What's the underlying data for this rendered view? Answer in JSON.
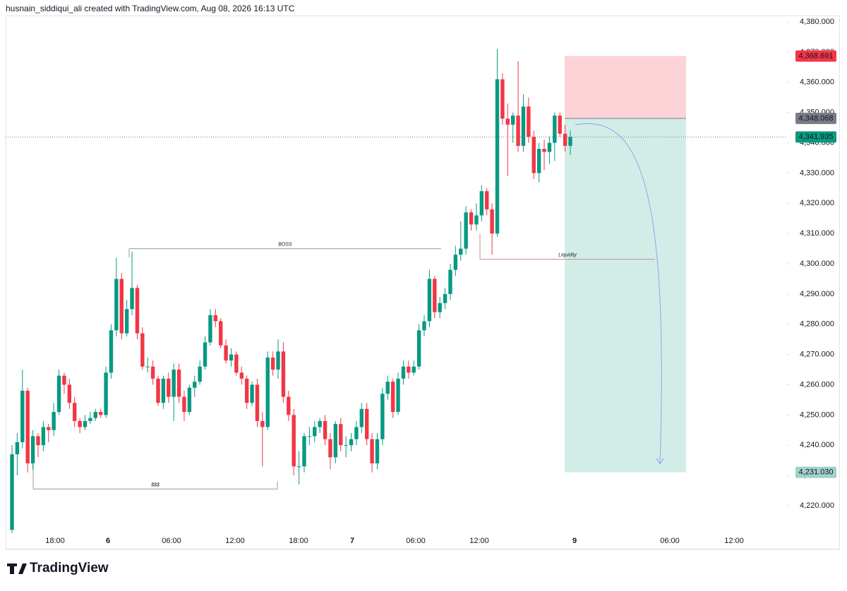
{
  "header": "husnain_siddiqui_ali created with TradingView.com, Aug 08, 2026 16:13 UTC",
  "footer": "TradingView",
  "chart_data": {
    "type": "candlestick",
    "up_color": "#089981",
    "down_color": "#f23645",
    "ohlc": [
      [
        4212,
        4240,
        4211,
        4237
      ],
      [
        4237,
        4244,
        4230,
        4241
      ],
      [
        4241,
        4265,
        4239,
        4258
      ],
      [
        4258,
        4259,
        4231,
        4234
      ],
      [
        4234,
        4245,
        4232,
        4243
      ],
      [
        4243,
        4244,
        4236,
        4240
      ],
      [
        4240,
        4248,
        4238,
        4246
      ],
      [
        4246,
        4247,
        4241,
        4245
      ],
      [
        4245,
        4254,
        4243,
        4251
      ],
      [
        4251,
        4265,
        4250,
        4263
      ],
      [
        4263,
        4264,
        4257,
        4260
      ],
      [
        4260,
        4262,
        4252,
        4254
      ],
      [
        4254,
        4256,
        4246,
        4248
      ],
      [
        4248,
        4249,
        4244,
        4246
      ],
      [
        4246,
        4250,
        4245,
        4248
      ],
      [
        4248,
        4251,
        4247,
        4249
      ],
      [
        4249,
        4252,
        4248,
        4251
      ],
      [
        4251,
        4252,
        4249,
        4250
      ],
      [
        4250,
        4266,
        4249,
        4264
      ],
      [
        4264,
        4280,
        4262,
        4278
      ],
      [
        4278,
        4302,
        4276,
        4295
      ],
      [
        4295,
        4297,
        4275,
        4277
      ],
      [
        4277,
        4288,
        4276,
        4285
      ],
      [
        4285,
        4304,
        4283,
        4292
      ],
      [
        4292,
        4293,
        4275,
        4277
      ],
      [
        4277,
        4279,
        4265,
        4266
      ],
      [
        4266,
        4269,
        4264,
        4266
      ],
      [
        4266,
        4268,
        4260,
        4262
      ],
      [
        4262,
        4263,
        4253,
        4254
      ],
      [
        4254,
        4263,
        4252,
        4262
      ],
      [
        4262,
        4264,
        4254,
        4256
      ],
      [
        4256,
        4267,
        4248,
        4265
      ],
      [
        4265,
        4267,
        4254,
        4256
      ],
      [
        4256,
        4258,
        4248,
        4251
      ],
      [
        4251,
        4260,
        4250,
        4259
      ],
      [
        4259,
        4263,
        4256,
        4261
      ],
      [
        4261,
        4268,
        4260,
        4266
      ],
      [
        4266,
        4276,
        4265,
        4274
      ],
      [
        4274,
        4285,
        4273,
        4283
      ],
      [
        4283,
        4285,
        4279,
        4281
      ],
      [
        4281,
        4282,
        4272,
        4273
      ],
      [
        4273,
        4275,
        4267,
        4268
      ],
      [
        4268,
        4272,
        4266,
        4270
      ],
      [
        4270,
        4271,
        4263,
        4264
      ],
      [
        4264,
        4266,
        4260,
        4262
      ],
      [
        4262,
        4263,
        4252,
        4254
      ],
      [
        4254,
        4261,
        4253,
        4260
      ],
      [
        4260,
        4262,
        4246,
        4248
      ],
      [
        4248,
        4251,
        4233,
        4246
      ],
      [
        4246,
        4271,
        4245,
        4269
      ],
      [
        4269,
        4271,
        4263,
        4265
      ],
      [
        4265,
        4275,
        4262,
        4271
      ],
      [
        4271,
        4274,
        4254,
        4256
      ],
      [
        4256,
        4258,
        4248,
        4250
      ],
      [
        4250,
        4252,
        4230,
        4233
      ],
      [
        4233,
        4238,
        4227,
        4233
      ],
      [
        4233,
        4244,
        4231,
        4243
      ],
      [
        4243,
        4246,
        4240,
        4243
      ],
      [
        4243,
        4248,
        4241,
        4246
      ],
      [
        4246,
        4249,
        4244,
        4248
      ],
      [
        4248,
        4250,
        4240,
        4242
      ],
      [
        4242,
        4244,
        4232,
        4236
      ],
      [
        4236,
        4248,
        4234,
        4247
      ],
      [
        4247,
        4249,
        4238,
        4240
      ],
      [
        4240,
        4243,
        4236,
        4240
      ],
      [
        4240,
        4244,
        4238,
        4242
      ],
      [
        4242,
        4248,
        4240,
        4246
      ],
      [
        4246,
        4254,
        4244,
        4252
      ],
      [
        4252,
        4254,
        4240,
        4242
      ],
      [
        4242,
        4244,
        4231,
        4234
      ],
      [
        4234,
        4244,
        4232,
        4242
      ],
      [
        4242,
        4259,
        4240,
        4257
      ],
      [
        4257,
        4263,
        4255,
        4261
      ],
      [
        4261,
        4262,
        4249,
        4251
      ],
      [
        4251,
        4264,
        4250,
        4262
      ],
      [
        4262,
        4268,
        4260,
        4266
      ],
      [
        4266,
        4268,
        4262,
        4264
      ],
      [
        4264,
        4268,
        4263,
        4266
      ],
      [
        4266,
        4280,
        4265,
        4278
      ],
      [
        4278,
        4283,
        4276,
        4281
      ],
      [
        4281,
        4298,
        4279,
        4295
      ],
      [
        4295,
        4296,
        4282,
        4284
      ],
      [
        4284,
        4289,
        4282,
        4287
      ],
      [
        4287,
        4292,
        4285,
        4290
      ],
      [
        4290,
        4300,
        4288,
        4298
      ],
      [
        4298,
        4306,
        4296,
        4303
      ],
      [
        4303,
        4314,
        4301,
        4305
      ],
      [
        4305,
        4319,
        4303,
        4317
      ],
      [
        4317,
        4318,
        4311,
        4313
      ],
      [
        4313,
        4320,
        4311,
        4316
      ],
      [
        4316,
        4326,
        4314,
        4324
      ],
      [
        4324,
        4325,
        4316,
        4318
      ],
      [
        4318,
        4320,
        4303,
        4310
      ],
      [
        4310,
        4371,
        4309,
        4361
      ],
      [
        4361,
        4363,
        4346,
        4348
      ],
      [
        4348,
        4353,
        4329,
        4346
      ],
      [
        4346,
        4350,
        4340,
        4349
      ],
      [
        4349,
        4367,
        4337,
        4339
      ],
      [
        4339,
        4356,
        4337,
        4352
      ],
      [
        4352,
        4355,
        4340,
        4342
      ],
      [
        4342,
        4344,
        4328,
        4330
      ],
      [
        4330,
        4340,
        4327,
        4338
      ],
      [
        4338,
        4341,
        4331,
        4337
      ],
      [
        4337,
        4342,
        4333,
        4340
      ],
      [
        4340,
        4350,
        4334,
        4349
      ],
      [
        4349,
        4350,
        4342,
        4343
      ],
      [
        4343,
        4346,
        4337,
        4339
      ],
      [
        4339,
        4344,
        4336,
        4342
      ]
    ],
    "xtick_labels": [
      "18:00",
      "6",
      "06:00",
      "12:00",
      "18:00",
      "7",
      "06:00",
      "12:00",
      "9",
      "06:00",
      "12:00"
    ],
    "ylim": [
      4220,
      4380
    ],
    "yticks": [
      {
        "value": 4220,
        "label": "4,220.000"
      },
      {
        "value": 4230,
        "label": "4,230.000"
      },
      {
        "value": 4240,
        "label": "4,240.000"
      },
      {
        "value": 4250,
        "label": "4,250.000"
      },
      {
        "value": 4260,
        "label": "4,260.000"
      },
      {
        "value": 4270,
        "label": "4,270.000"
      },
      {
        "value": 4280,
        "label": "4,280.000"
      },
      {
        "value": 4290,
        "label": "4,290.000"
      },
      {
        "value": 4300,
        "label": "4,300.000"
      },
      {
        "value": 4310,
        "label": "4,310.000"
      },
      {
        "value": 4320,
        "label": "4,320.000"
      },
      {
        "value": 4330,
        "label": "4,330.000"
      },
      {
        "value": 4340,
        "label": "4,340.000"
      },
      {
        "value": 4350,
        "label": "4,350.000"
      },
      {
        "value": 4360,
        "label": "4,360.000"
      },
      {
        "value": 4370,
        "label": "4,370.000"
      },
      {
        "value": 4380,
        "label": "4,380.000"
      }
    ],
    "levels": [
      {
        "label": "BOSS",
        "price": 4305
      },
      {
        "label": "Liquidity",
        "price": 4301.5
      },
      {
        "label": "$$$",
        "price": 4225.5
      }
    ],
    "position": {
      "entry": 4348.068,
      "stop": 4368.691,
      "target": 4231.03
    },
    "current_price": 4341.935,
    "price_labels": [
      {
        "value": 4368.691,
        "label": "4,368.691",
        "color": "#f23645"
      },
      {
        "value": 4348.068,
        "label": "4,348.068",
        "color": "#787b86"
      },
      {
        "value": 4341.935,
        "label": "4,341.935",
        "color": "#089981"
      },
      {
        "value": 4231.03,
        "label": "4,231.030",
        "color": "#9fd3c9"
      }
    ]
  }
}
